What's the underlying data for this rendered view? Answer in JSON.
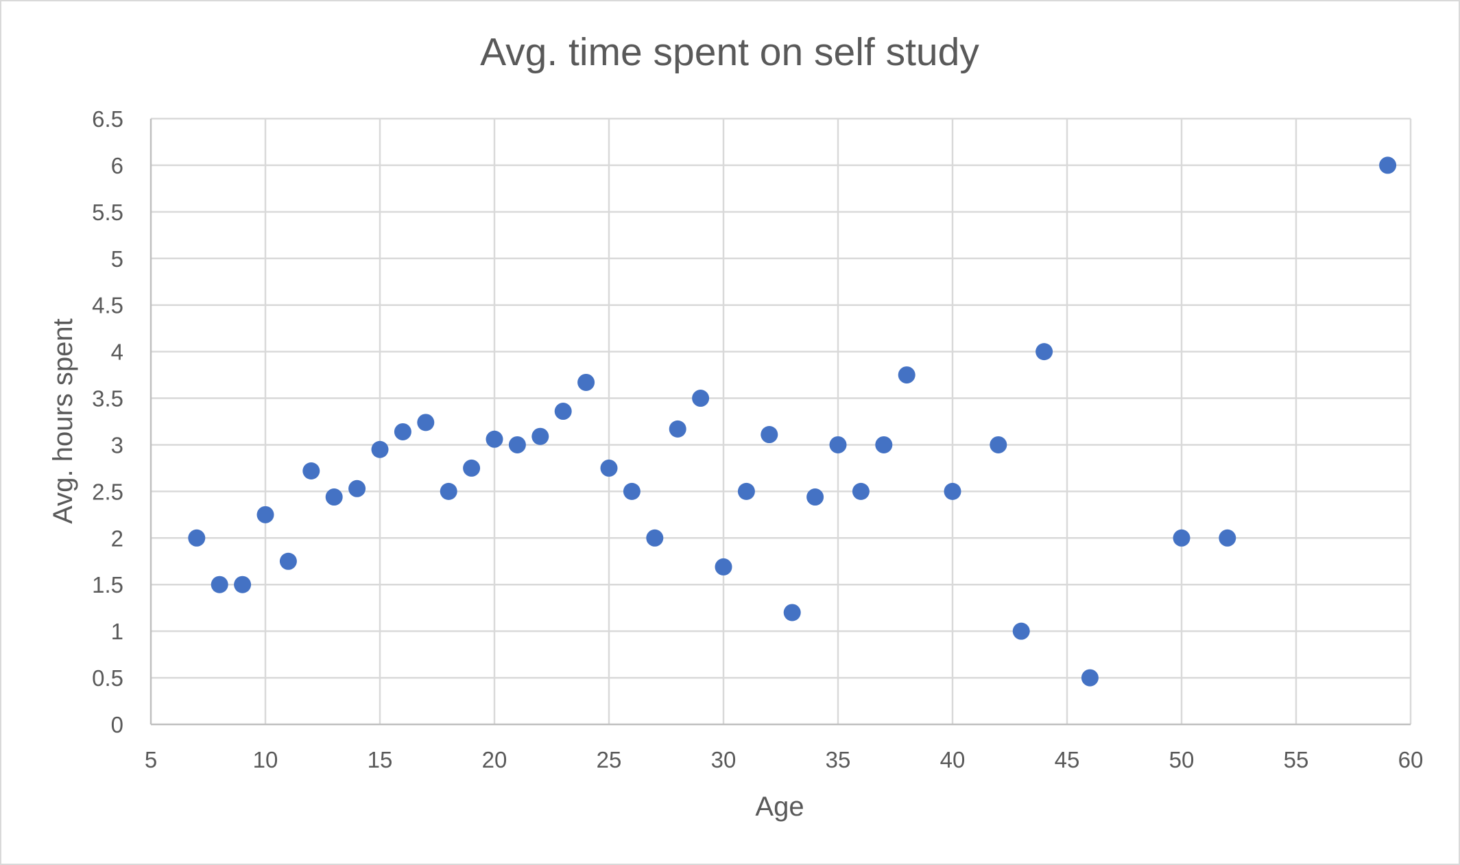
{
  "chart_data": {
    "type": "scatter",
    "title": "Avg. time spent on self study",
    "xlabel": "Age",
    "ylabel": "Avg. hours spent",
    "xlim": [
      5,
      60
    ],
    "ylim": [
      0,
      6.5
    ],
    "x_ticks": [
      "5",
      "10",
      "15",
      "20",
      "25",
      "30",
      "35",
      "40",
      "45",
      "50",
      "55",
      "60"
    ],
    "y_ticks": [
      "0",
      "0.5",
      "1",
      "1.5",
      "2",
      "2.5",
      "3",
      "3.5",
      "4",
      "4.5",
      "5",
      "5.5",
      "6",
      "6.5"
    ],
    "grid": true,
    "legend": "none",
    "marker_color": "#4472c4",
    "series": [
      {
        "points": [
          {
            "x": 7,
            "y": 2.0
          },
          {
            "x": 8,
            "y": 1.5
          },
          {
            "x": 9,
            "y": 1.5
          },
          {
            "x": 10,
            "y": 2.25
          },
          {
            "x": 11,
            "y": 1.75
          },
          {
            "x": 12,
            "y": 2.72
          },
          {
            "x": 13,
            "y": 2.44
          },
          {
            "x": 14,
            "y": 2.53
          },
          {
            "x": 15,
            "y": 2.95
          },
          {
            "x": 16,
            "y": 3.14
          },
          {
            "x": 17,
            "y": 3.24
          },
          {
            "x": 18,
            "y": 2.5
          },
          {
            "x": 19,
            "y": 2.75
          },
          {
            "x": 20,
            "y": 3.06
          },
          {
            "x": 21,
            "y": 3.0
          },
          {
            "x": 22,
            "y": 3.09
          },
          {
            "x": 23,
            "y": 3.36
          },
          {
            "x": 24,
            "y": 3.67
          },
          {
            "x": 25,
            "y": 2.75
          },
          {
            "x": 26,
            "y": 2.5
          },
          {
            "x": 27,
            "y": 2.0
          },
          {
            "x": 28,
            "y": 3.17
          },
          {
            "x": 29,
            "y": 3.5
          },
          {
            "x": 30,
            "y": 1.69
          },
          {
            "x": 31,
            "y": 2.5
          },
          {
            "x": 32,
            "y": 3.11
          },
          {
            "x": 33,
            "y": 1.2
          },
          {
            "x": 34,
            "y": 2.44
          },
          {
            "x": 35,
            "y": 3.0
          },
          {
            "x": 36,
            "y": 2.5
          },
          {
            "x": 37,
            "y": 3.0
          },
          {
            "x": 38,
            "y": 3.75
          },
          {
            "x": 40,
            "y": 2.5
          },
          {
            "x": 42,
            "y": 3.0
          },
          {
            "x": 43,
            "y": 1.0
          },
          {
            "x": 44,
            "y": 4.0
          },
          {
            "x": 46,
            "y": 0.5
          },
          {
            "x": 50,
            "y": 2.0
          },
          {
            "x": 52,
            "y": 2.0
          },
          {
            "x": 59,
            "y": 6.0
          }
        ]
      }
    ]
  }
}
